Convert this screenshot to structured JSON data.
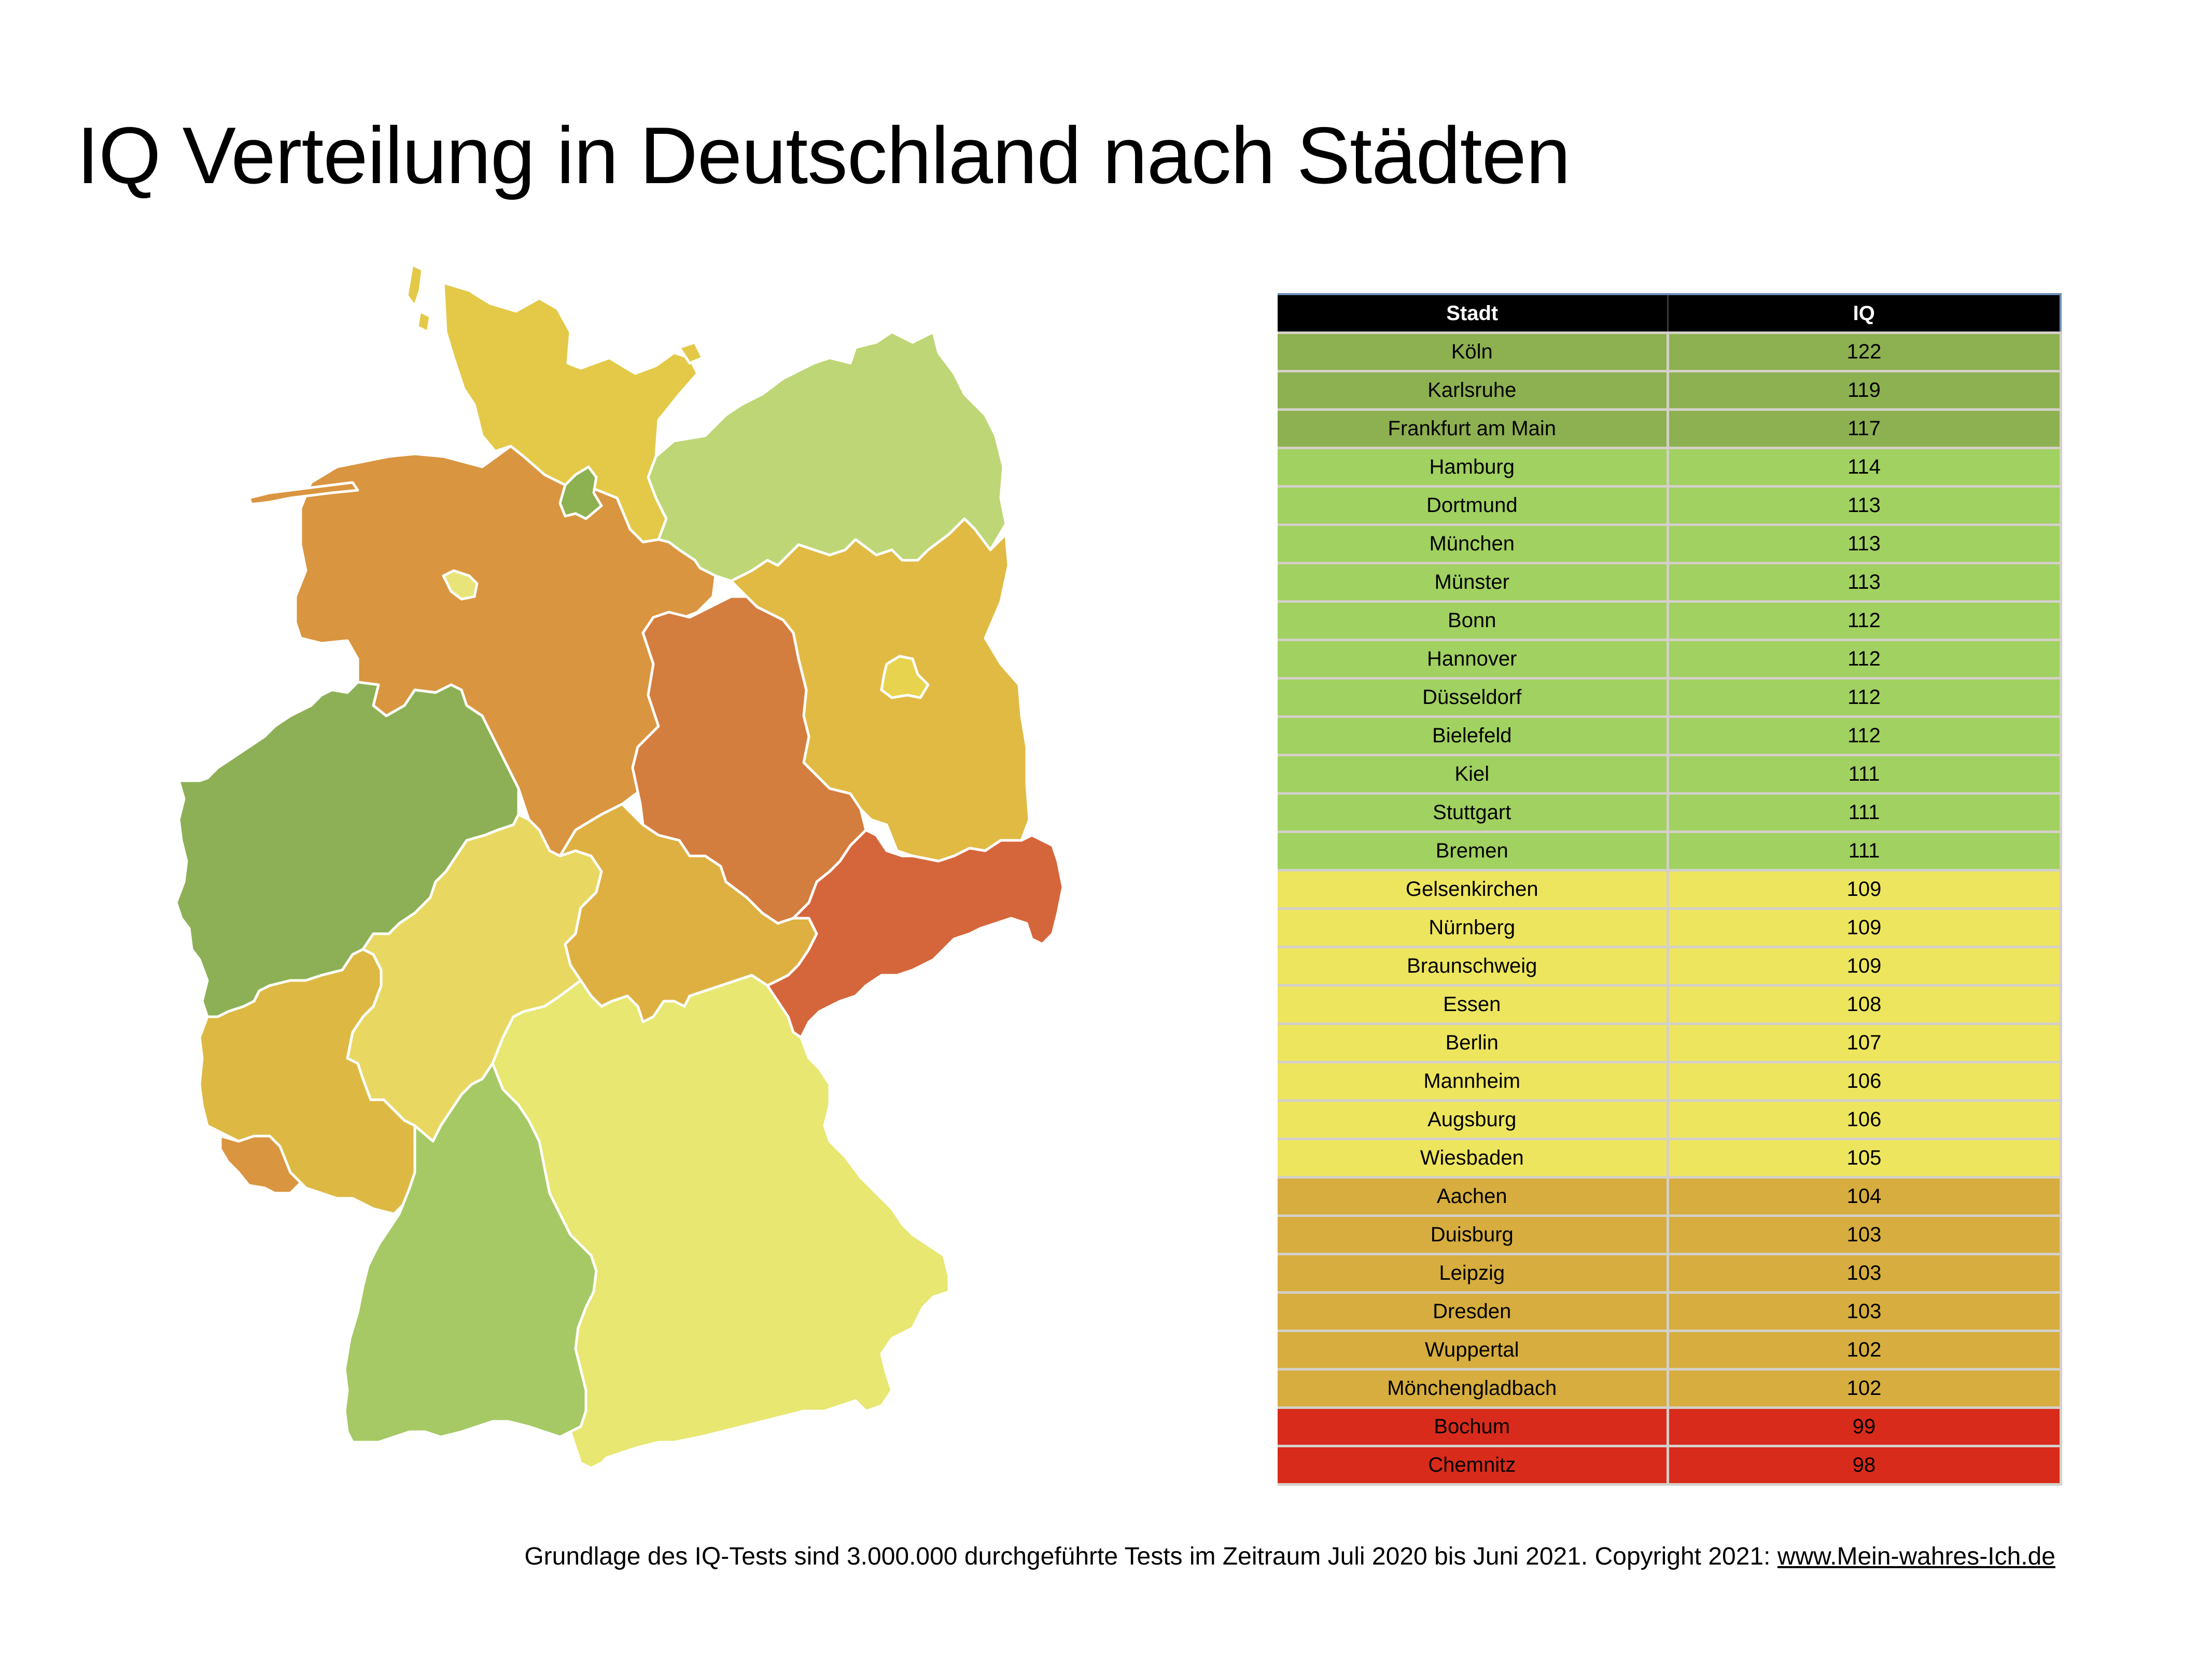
{
  "title": "IQ Verteilung in Deutschland nach Städten",
  "table": {
    "headers": [
      "Stadt",
      "IQ"
    ],
    "rows": [
      {
        "city": "Köln",
        "iq": "122",
        "color": "#8db050"
      },
      {
        "city": "Karlsruhe",
        "iq": "119",
        "color": "#8db050"
      },
      {
        "city": "Frankfurt am Main",
        "iq": "117",
        "color": "#8db050"
      },
      {
        "city": "Hamburg",
        "iq": "114",
        "color": "#a1d160"
      },
      {
        "city": "Dortmund",
        "iq": "113",
        "color": "#a1d160"
      },
      {
        "city": "München",
        "iq": "113",
        "color": "#a1d160"
      },
      {
        "city": "Münster",
        "iq": "113",
        "color": "#a1d160"
      },
      {
        "city": "Bonn",
        "iq": "112",
        "color": "#a1d160"
      },
      {
        "city": "Hannover",
        "iq": "112",
        "color": "#a1d160"
      },
      {
        "city": "Düsseldorf",
        "iq": "112",
        "color": "#a1d160"
      },
      {
        "city": "Bielefeld",
        "iq": "112",
        "color": "#a1d160"
      },
      {
        "city": "Kiel",
        "iq": "111",
        "color": "#a1d160"
      },
      {
        "city": "Stuttgart",
        "iq": "111",
        "color": "#a1d160"
      },
      {
        "city": "Bremen",
        "iq": "111",
        "color": "#a1d160"
      },
      {
        "city": "Gelsenkirchen",
        "iq": "109",
        "color": "#ede55e"
      },
      {
        "city": "Nürnberg",
        "iq": "109",
        "color": "#ede55e"
      },
      {
        "city": "Braunschweig",
        "iq": "109",
        "color": "#ede55e"
      },
      {
        "city": "Essen",
        "iq": "108",
        "color": "#ede55e"
      },
      {
        "city": "Berlin",
        "iq": "107",
        "color": "#ede55e"
      },
      {
        "city": "Mannheim",
        "iq": "106",
        "color": "#ede55e"
      },
      {
        "city": "Augsburg",
        "iq": "106",
        "color": "#ede55e"
      },
      {
        "city": "Wiesbaden",
        "iq": "105",
        "color": "#ede55e"
      },
      {
        "city": "Aachen",
        "iq": "104",
        "color": "#d6ad3e"
      },
      {
        "city": "Duisburg",
        "iq": "103",
        "color": "#d6ad3e"
      },
      {
        "city": "Leipzig",
        "iq": "103",
        "color": "#d6ad3e"
      },
      {
        "city": "Dresden",
        "iq": "103",
        "color": "#d6ad3e"
      },
      {
        "city": "Wuppertal",
        "iq": "102",
        "color": "#d6ad3e"
      },
      {
        "city": "Mönchengladbach",
        "iq": "102",
        "color": "#d6ad3e"
      },
      {
        "city": "Bochum",
        "iq": "99",
        "color": "#d92b1b"
      },
      {
        "city": "Chemnitz",
        "iq": "98",
        "color": "#d92b1b"
      }
    ]
  },
  "map": {
    "regions": [
      {
        "name": "schleswig-holstein",
        "color": "#e3c947"
      },
      {
        "name": "mecklenburg-vorpommern",
        "color": "#bed675"
      },
      {
        "name": "niedersachsen",
        "color": "#d9953f"
      },
      {
        "name": "hamburg",
        "color": "#8db050"
      },
      {
        "name": "bremen",
        "color": "#e8e47a"
      },
      {
        "name": "brandenburg",
        "color": "#e1ba44"
      },
      {
        "name": "berlin",
        "color": "#e8d34e"
      },
      {
        "name": "sachsen-anhalt",
        "color": "#d37d3f"
      },
      {
        "name": "nordrhein-westfalen",
        "color": "#8db056"
      },
      {
        "name": "hessen",
        "color": "#e8d862"
      },
      {
        "name": "thueringen",
        "color": "#deb042"
      },
      {
        "name": "sachsen",
        "color": "#d5663b"
      },
      {
        "name": "rheinland-pfalz",
        "color": "#ddb944"
      },
      {
        "name": "saarland",
        "color": "#d9953f"
      },
      {
        "name": "baden-wuerttemberg",
        "color": "#a6c965"
      },
      {
        "name": "bayern",
        "color": "#e7e772"
      }
    ]
  },
  "footer": {
    "text": "Grundlage des IQ-Tests sind 3.000.000 durchgeführte Tests im Zeitraum Juli 2020 bis Juni 2021. Copyright 2021: ",
    "link": "www.Mein-wahres-Ich.de"
  }
}
